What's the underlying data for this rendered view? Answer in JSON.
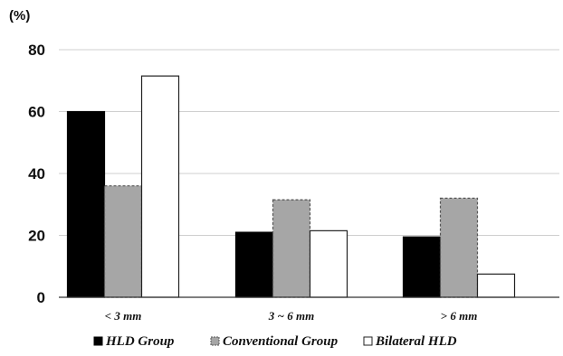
{
  "chart_data": {
    "type": "bar",
    "unit_label": "(%)",
    "categories": [
      "< 3 mm",
      "3 ~ 6 mm",
      "> 6 mm"
    ],
    "series": [
      {
        "name": "HLD Group",
        "values": [
          60,
          21,
          19.5
        ],
        "color": "#000000",
        "stroke": "#000000",
        "dash": false
      },
      {
        "name": "Conventional Group",
        "values": [
          36,
          31.5,
          32
        ],
        "color": "#a6a6a6",
        "stroke": "#555555",
        "dash": true
      },
      {
        "name": "Bilateral HLD",
        "values": [
          71.5,
          21.5,
          7.5
        ],
        "color": "#ffffff",
        "stroke": "#222222",
        "dash": false
      }
    ],
    "yticks": [
      0,
      20,
      40,
      60,
      80
    ],
    "ylim": [
      0,
      80
    ],
    "grid": true,
    "legend_position": "bottom"
  }
}
